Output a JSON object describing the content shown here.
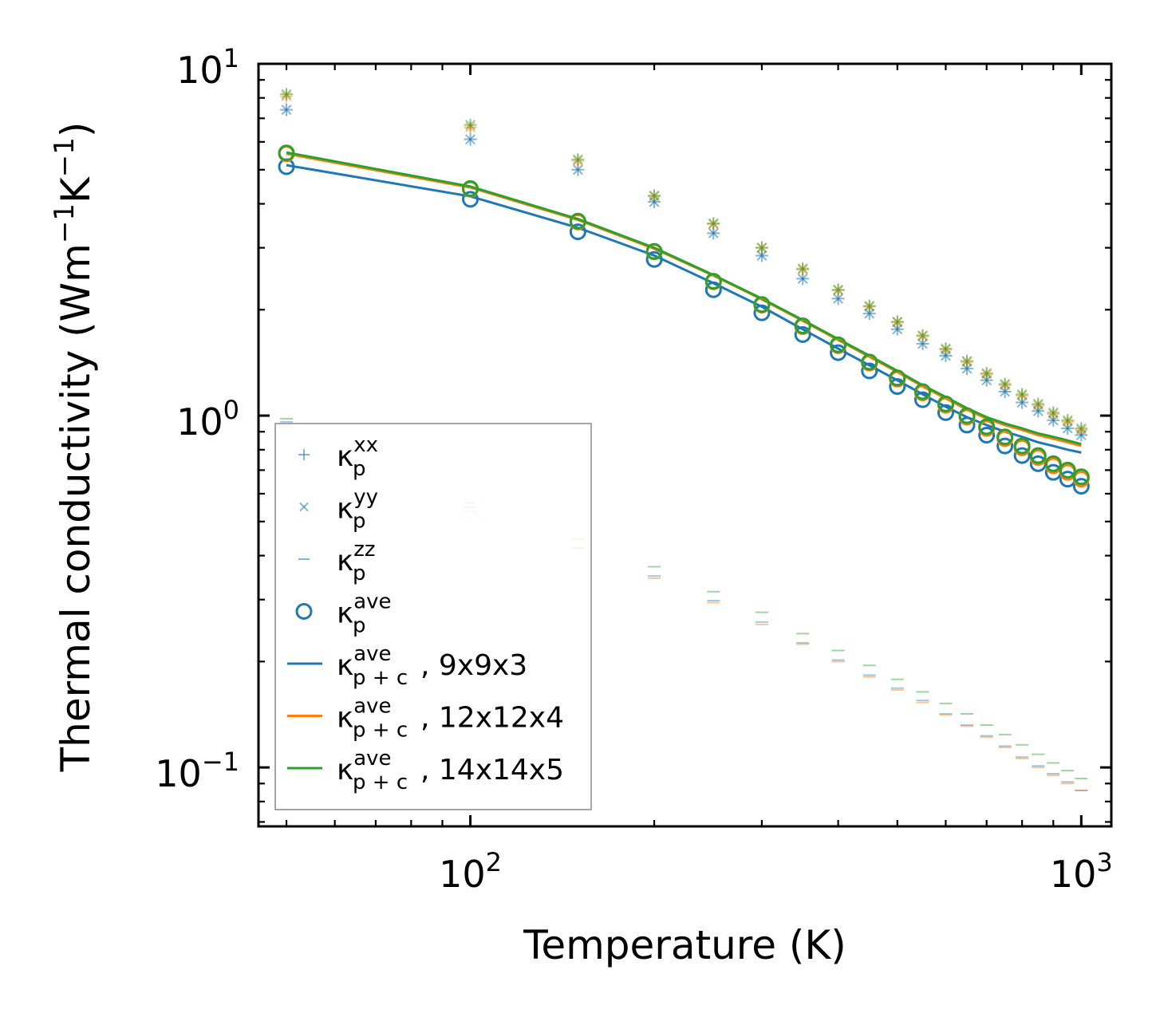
{
  "chart_data": {
    "type": "scatter",
    "xscale": "log",
    "yscale": "log",
    "xlim": [
      45,
      1120
    ],
    "ylim": [
      0.068,
      10
    ],
    "xlabel": "Temperature (K)",
    "ylabel": {
      "base": "Thermal conductivity (Wm",
      "exp1": "−1",
      "mid": "K",
      "exp2": "−1",
      "close": ")"
    },
    "xticks": [
      {
        "value": 100,
        "base": "10",
        "exp": "2"
      },
      {
        "value": 1000,
        "base": "10",
        "exp": "3"
      }
    ],
    "yticks": [
      {
        "value": 10,
        "base": "10",
        "exp": "1"
      },
      {
        "value": 1,
        "base": "10",
        "exp": "0"
      },
      {
        "value": 0.1,
        "base": "10",
        "exp": "−1"
      }
    ],
    "colors": {
      "blue": "#1f77b4",
      "orange": "#ff7f0e",
      "green": "#2ca02c"
    },
    "temperatures": [
      50,
      100,
      150,
      200,
      250,
      300,
      350,
      400,
      450,
      500,
      550,
      600,
      650,
      700,
      750,
      800,
      850,
      900,
      950,
      1000
    ],
    "series": [
      {
        "name": "kxx_9x9x3",
        "marker": "+",
        "color": "#1f77b4",
        "alpha": 0.55,
        "values": [
          7.4,
          6.1,
          5.0,
          4.05,
          3.3,
          2.85,
          2.45,
          2.15,
          1.95,
          1.76,
          1.6,
          1.48,
          1.36,
          1.26,
          1.17,
          1.09,
          1.03,
          0.97,
          0.92,
          0.88
        ]
      },
      {
        "name": "kyy_9x9x3",
        "marker": "x",
        "color": "#1f77b4",
        "alpha": 0.55,
        "values": [
          7.4,
          6.1,
          5.0,
          4.05,
          3.3,
          2.85,
          2.45,
          2.15,
          1.95,
          1.76,
          1.6,
          1.48,
          1.36,
          1.26,
          1.17,
          1.09,
          1.03,
          0.97,
          0.92,
          0.88
        ]
      },
      {
        "name": "kxx_12x12x4",
        "marker": "+",
        "color": "#ff7f0e",
        "alpha": 0.5,
        "values": [
          8.1,
          6.6,
          5.3,
          4.2,
          3.5,
          3.0,
          2.6,
          2.27,
          2.04,
          1.84,
          1.68,
          1.54,
          1.42,
          1.31,
          1.22,
          1.14,
          1.07,
          1.01,
          0.96,
          0.91
        ]
      },
      {
        "name": "kyy_12x12x4",
        "marker": "x",
        "color": "#ff7f0e",
        "alpha": 0.5,
        "values": [
          8.1,
          6.6,
          5.3,
          4.2,
          3.5,
          3.0,
          2.6,
          2.27,
          2.04,
          1.84,
          1.68,
          1.54,
          1.42,
          1.31,
          1.22,
          1.14,
          1.07,
          1.01,
          0.96,
          0.91
        ]
      },
      {
        "name": "kxx_14x14x5",
        "marker": "+",
        "color": "#2ca02c",
        "alpha": 0.5,
        "values": [
          8.2,
          6.7,
          5.35,
          4.22,
          3.52,
          3.0,
          2.62,
          2.28,
          2.05,
          1.85,
          1.69,
          1.55,
          1.43,
          1.32,
          1.23,
          1.15,
          1.08,
          1.02,
          0.97,
          0.92
        ]
      },
      {
        "name": "kyy_14x14x5",
        "marker": "x",
        "color": "#2ca02c",
        "alpha": 0.5,
        "values": [
          8.2,
          6.7,
          5.35,
          4.22,
          3.52,
          3.0,
          2.62,
          2.28,
          2.05,
          1.85,
          1.69,
          1.55,
          1.43,
          1.32,
          1.23,
          1.15,
          1.08,
          1.02,
          0.97,
          0.92
        ]
      },
      {
        "name": "kzz_9x9x3",
        "marker": "_",
        "color": "#1f77b4",
        "alpha": 0.4,
        "values": [
          0.96,
          0.55,
          0.42,
          0.35,
          0.298,
          0.259,
          0.226,
          0.202,
          0.183,
          0.168,
          0.155,
          0.142,
          0.132,
          0.123,
          0.115,
          0.107,
          0.101,
          0.096,
          0.091,
          0.086
        ]
      },
      {
        "name": "kzz_12x12x4",
        "marker": "_",
        "color": "#ff7f0e",
        "alpha": 0.45,
        "values": [
          0.93,
          0.535,
          0.42,
          0.345,
          0.294,
          0.255,
          0.224,
          0.2,
          0.181,
          0.166,
          0.153,
          0.141,
          0.131,
          0.122,
          0.114,
          0.106,
          0.1,
          0.095,
          0.09,
          0.086
        ]
      },
      {
        "name": "kzz_14x14x5",
        "marker": "_",
        "color": "#2ca02c",
        "alpha": 0.45,
        "values": [
          0.98,
          0.565,
          0.445,
          0.372,
          0.316,
          0.276,
          0.24,
          0.215,
          0.195,
          0.178,
          0.164,
          0.152,
          0.142,
          0.132,
          0.124,
          0.116,
          0.109,
          0.103,
          0.098,
          0.093
        ]
      },
      {
        "name": "kave_9x9x3",
        "marker": "o",
        "color": "#1f77b4",
        "values": [
          5.1,
          4.12,
          3.33,
          2.78,
          2.28,
          1.96,
          1.7,
          1.51,
          1.34,
          1.21,
          1.11,
          1.02,
          0.94,
          0.88,
          0.82,
          0.77,
          0.73,
          0.69,
          0.66,
          0.63
        ]
      },
      {
        "name": "kave_12x12x4",
        "marker": "o",
        "color": "#ff7f0e",
        "values": [
          5.55,
          4.4,
          3.55,
          2.92,
          2.4,
          2.06,
          1.79,
          1.58,
          1.41,
          1.27,
          1.16,
          1.07,
          0.99,
          0.92,
          0.86,
          0.81,
          0.76,
          0.72,
          0.69,
          0.66
        ]
      },
      {
        "name": "kave_14x14x5",
        "marker": "o",
        "color": "#2ca02c",
        "values": [
          5.58,
          4.42,
          3.57,
          2.93,
          2.41,
          2.07,
          1.8,
          1.59,
          1.42,
          1.28,
          1.17,
          1.08,
          1.0,
          0.93,
          0.87,
          0.82,
          0.77,
          0.73,
          0.7,
          0.67
        ]
      },
      {
        "name": "kpc_9x9x3",
        "marker": "line",
        "color": "#1f77b4",
        "values": [
          5.15,
          4.2,
          3.42,
          2.85,
          2.38,
          2.04,
          1.76,
          1.55,
          1.39,
          1.26,
          1.15,
          1.06,
          0.99,
          0.94,
          0.9,
          0.87,
          0.84,
          0.82,
          0.8,
          0.785
        ]
      },
      {
        "name": "kpc_12x12x4",
        "marker": "line",
        "color": "#ff7f0e",
        "values": [
          5.55,
          4.45,
          3.6,
          2.98,
          2.5,
          2.14,
          1.86,
          1.64,
          1.47,
          1.33,
          1.21,
          1.12,
          1.04,
          0.98,
          0.94,
          0.91,
          0.88,
          0.86,
          0.84,
          0.82
        ]
      },
      {
        "name": "kpc_14x14x5",
        "marker": "line",
        "color": "#2ca02c",
        "values": [
          5.6,
          4.48,
          3.62,
          3.0,
          2.51,
          2.15,
          1.87,
          1.65,
          1.48,
          1.34,
          1.22,
          1.13,
          1.05,
          0.99,
          0.95,
          0.92,
          0.89,
          0.87,
          0.85,
          0.83
        ]
      }
    ],
    "legend": {
      "placement": "lower-left",
      "entries": [
        {
          "marker": "+",
          "color": "#1f77b4",
          "base": "κ",
          "sub": "p",
          "sup": "xx",
          "suffix": ""
        },
        {
          "marker": "x",
          "color": "#1f77b4",
          "base": "κ",
          "sub": "p",
          "sup": "yy",
          "suffix": ""
        },
        {
          "marker": "_",
          "color": "#1f77b4",
          "base": "κ",
          "sub": "p",
          "sup": "zz",
          "suffix": ""
        },
        {
          "marker": "o",
          "color": "#1f77b4",
          "base": "κ",
          "sub": "p",
          "sup": "ave",
          "suffix": ""
        },
        {
          "marker": "line",
          "color": "#1f77b4",
          "base": "κ",
          "sub": "p + c",
          "sup": "ave",
          "suffix": ", 9x9x3"
        },
        {
          "marker": "line",
          "color": "#ff7f0e",
          "base": "κ",
          "sub": "p + c",
          "sup": "ave",
          "suffix": ", 12x12x4"
        },
        {
          "marker": "line",
          "color": "#2ca02c",
          "base": "κ",
          "sub": "p + c",
          "sup": "ave",
          "suffix": ", 14x14x5"
        }
      ]
    }
  }
}
